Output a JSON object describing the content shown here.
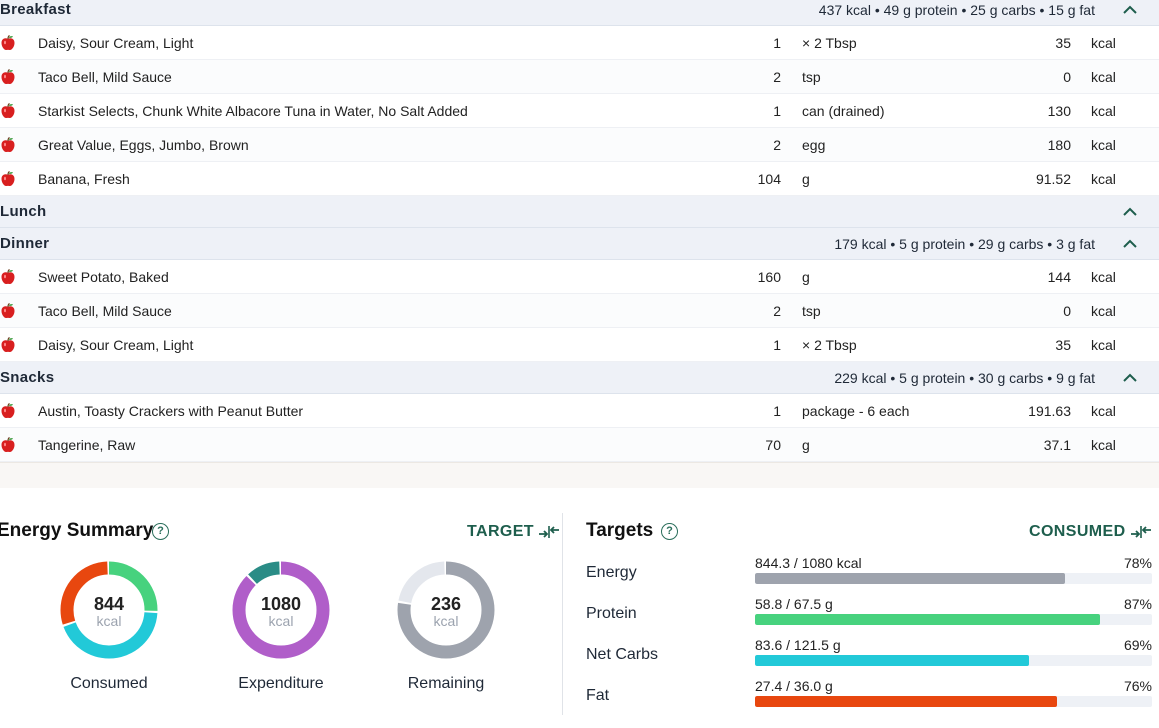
{
  "meals": [
    {
      "title": "Breakfast",
      "summary": "437 kcal • 49 g protein • 25 g carbs • 15 g fat",
      "items": [
        {
          "name": "Daisy, Sour Cream, Light",
          "amount": "1",
          "unit": "× 2 Tbsp",
          "cal": "35",
          "cal_unit": "kcal"
        },
        {
          "name": "Taco Bell, Mild Sauce",
          "amount": "2",
          "unit": "tsp",
          "cal": "0",
          "cal_unit": "kcal"
        },
        {
          "name": "Starkist Selects, Chunk White Albacore Tuna in Water, No Salt Added",
          "amount": "1",
          "unit": "can (drained)",
          "cal": "130",
          "cal_unit": "kcal"
        },
        {
          "name": "Great Value, Eggs, Jumbo, Brown",
          "amount": "2",
          "unit": "egg",
          "cal": "180",
          "cal_unit": "kcal"
        },
        {
          "name": "Banana, Fresh",
          "amount": "104",
          "unit": "g",
          "cal": "91.52",
          "cal_unit": "kcal"
        }
      ]
    },
    {
      "title": "Lunch",
      "summary": "",
      "items": []
    },
    {
      "title": "Dinner",
      "summary": "179 kcal • 5 g protein • 29 g carbs • 3 g fat",
      "items": [
        {
          "name": "Sweet Potato, Baked",
          "amount": "160",
          "unit": "g",
          "cal": "144",
          "cal_unit": "kcal"
        },
        {
          "name": "Taco Bell, Mild Sauce",
          "amount": "2",
          "unit": "tsp",
          "cal": "0",
          "cal_unit": "kcal"
        },
        {
          "name": "Daisy, Sour Cream, Light",
          "amount": "1",
          "unit": "× 2 Tbsp",
          "cal": "35",
          "cal_unit": "kcal"
        }
      ]
    },
    {
      "title": "Snacks",
      "summary": "229 kcal • 5 g protein • 30 g carbs • 9 g fat",
      "items": [
        {
          "name": "Austin, Toasty Crackers with Peanut Butter",
          "amount": "1",
          "unit": "package - 6 each",
          "cal": "191.63",
          "cal_unit": "kcal"
        },
        {
          "name": "Tangerine, Raw",
          "amount": "70",
          "unit": "g",
          "cal": "37.1",
          "cal_unit": "kcal"
        }
      ]
    }
  ],
  "energy_summary": {
    "title": "Energy Summary",
    "toggle_label": "TARGET",
    "donuts": [
      {
        "value": "844",
        "unit": "kcal",
        "label": "Consumed",
        "segments": [
          {
            "color": "#47d27e",
            "fraction": 0.26
          },
          {
            "color": "#22c9d8",
            "fraction": 0.44
          },
          {
            "color": "#e8470f",
            "fraction": 0.3
          }
        ]
      },
      {
        "value": "1080",
        "unit": "kcal",
        "label": "Expenditure",
        "segments": [
          {
            "color": "#b05ec9",
            "fraction": 0.88
          },
          {
            "color": "#2a8c86",
            "fraction": 0.12
          }
        ]
      },
      {
        "value": "236",
        "unit": "kcal",
        "label": "Remaining",
        "segments": [
          {
            "color": "#9ea3ad",
            "fraction": 0.78
          },
          {
            "color": "#e4e7ed",
            "fraction": 0.22
          }
        ]
      }
    ]
  },
  "targets": {
    "title": "Targets",
    "toggle_label": "CONSUMED",
    "items": [
      {
        "label": "Energy",
        "value": "844.3 / 1080 kcal",
        "percent_text": "78%",
        "percent": 78,
        "color": "#9ea3ad"
      },
      {
        "label": "Protein",
        "value": "58.8 / 67.5 g",
        "percent_text": "87%",
        "percent": 87,
        "color": "#47d27e"
      },
      {
        "label": "Net Carbs",
        "value": "83.6 / 121.5 g",
        "percent_text": "69%",
        "percent": 69,
        "color": "#22c9d8"
      },
      {
        "label": "Fat",
        "value": "27.4 / 36.0 g",
        "percent_text": "76%",
        "percent": 76,
        "color": "#e8470f"
      }
    ]
  },
  "colors": {
    "accent": "#1e5e4d",
    "apple": "#d81f1f"
  },
  "icons": {
    "food": "apple-icon",
    "collapse": "chevron-up-icon",
    "help": "question-circle-icon",
    "swap": "swap-arrows-icon"
  }
}
